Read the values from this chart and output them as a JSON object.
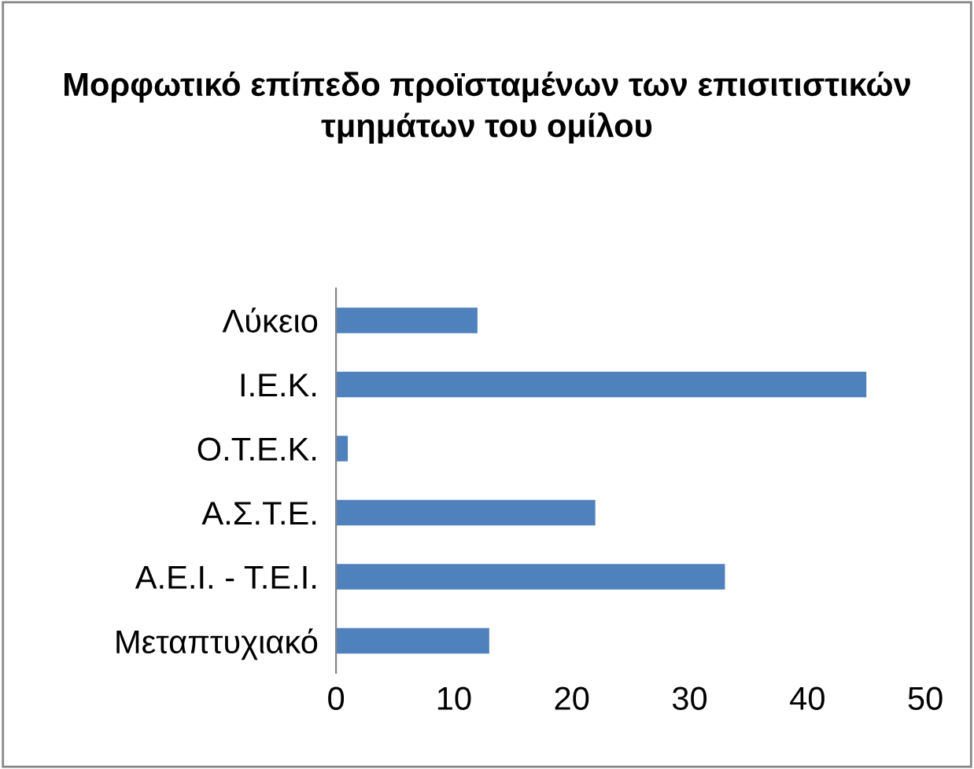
{
  "chart_data": {
    "type": "bar",
    "orientation": "horizontal",
    "title": "Μορφωτικό επίπεδο προϊσταμένων των επισιτιστικών τμημάτων του ομίλου",
    "categories": [
      "Λύκειο",
      "Ι.Ε.Κ.",
      "Ο.Τ.Ε.Κ.",
      "Α.Σ.Τ.Ε.",
      "Α.Ε.Ι. - Τ.Ε.Ι.",
      "Μεταπτυχιακό"
    ],
    "values": [
      12,
      45,
      1,
      22,
      33,
      13
    ],
    "color": "#4f81bd",
    "xlim": [
      0,
      50
    ],
    "xticks": [
      0,
      10,
      20,
      30,
      40,
      50
    ],
    "grid": false,
    "legend": false
  }
}
